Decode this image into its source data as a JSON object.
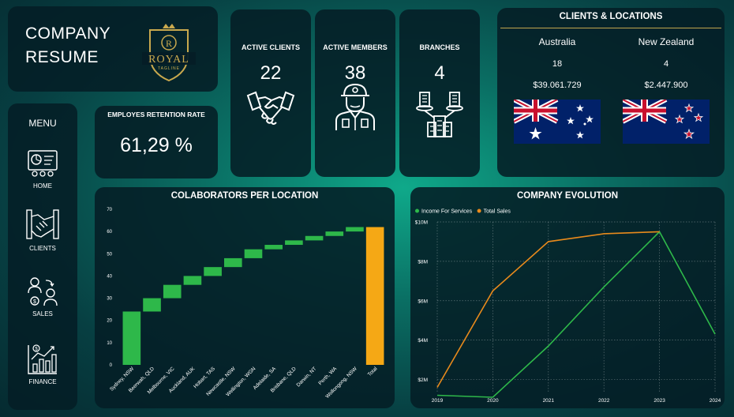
{
  "header": {
    "title_line1": "COMPANY",
    "title_line2": "RESUME",
    "logo_text": "ROYAL",
    "logo_sub": "TAGLINE",
    "logo_letter": "R"
  },
  "menu": {
    "title": "MENU",
    "items": [
      {
        "label": "HOME",
        "icon": "dashboard-icon"
      },
      {
        "label": "CLIENTS",
        "icon": "handshake-icon"
      },
      {
        "label": "SALES",
        "icon": "sales-icon"
      },
      {
        "label": "FINANCE",
        "icon": "finance-chart-icon"
      }
    ]
  },
  "retention": {
    "title": "EMPLOYES RETENTION RATE",
    "value": "61,29 %"
  },
  "kpis": [
    {
      "title": "ACTIVE CLIENTS",
      "value": "22",
      "icon": "handshake-icon"
    },
    {
      "title": "ACTIVE MEMBERS",
      "value": "38",
      "icon": "worker-icon"
    },
    {
      "title": "BRANCHES",
      "value": "4",
      "icon": "branches-icon"
    }
  ],
  "locations": {
    "title": "CLIENTS & LOCATIONS",
    "items": [
      {
        "name": "Australia",
        "count": "18",
        "amount": "$39.061.729",
        "flag": "australia-flag-icon"
      },
      {
        "name": "New Zealand",
        "count": "4",
        "amount": "$2.447.900",
        "flag": "new-zealand-flag-icon"
      }
    ]
  },
  "colors": {
    "bar": "#2eb84a",
    "total": "#f5a815",
    "income": "#2eb84a",
    "sales": "#e88a1c"
  },
  "chart_data": [
    {
      "type": "bar",
      "title": "COLABORATORS PER LOCATION",
      "categories": [
        "Sydney, NSW",
        "Beerwah, QLD",
        "Melbourne, VIC",
        "Auckland, AUK",
        "Hobart, TAS",
        "Newcastle, NSW",
        "Wellington, WGN",
        "Adelaide, SA",
        "Brisbane, QLD",
        "Darwin, NT",
        "Perth, WA",
        "Wollongong, NSW",
        "Total"
      ],
      "values": [
        24,
        6,
        6,
        4,
        4,
        4,
        4,
        2,
        2,
        2,
        2,
        2,
        62
      ],
      "waterfall": true,
      "ylim": [
        0,
        70
      ],
      "yticks": [
        "0",
        "10",
        "20",
        "30",
        "40",
        "50",
        "60",
        "70"
      ]
    },
    {
      "type": "line",
      "title": "COMPANY EVOLUTION",
      "x": [
        "2019",
        "2020",
        "2021",
        "2022",
        "2023",
        "2024"
      ],
      "ylim": [
        1.3,
        10
      ],
      "yticks": [
        {
          "v": 2,
          "label": "$2M"
        },
        {
          "v": 4,
          "label": "$4M"
        },
        {
          "v": 6,
          "label": "$6M"
        },
        {
          "v": 8,
          "label": "$8M"
        },
        {
          "v": 10,
          "label": "$10M"
        }
      ],
      "series": [
        {
          "name": "Income For Services",
          "values": [
            1.2,
            1.1,
            3.7,
            6.7,
            9.5,
            4.3
          ]
        },
        {
          "name": "Total Sales",
          "values": [
            1.6,
            6.5,
            9.0,
            9.4,
            9.5,
            null
          ]
        }
      ],
      "legend": "top-left",
      "grid": true
    }
  ]
}
